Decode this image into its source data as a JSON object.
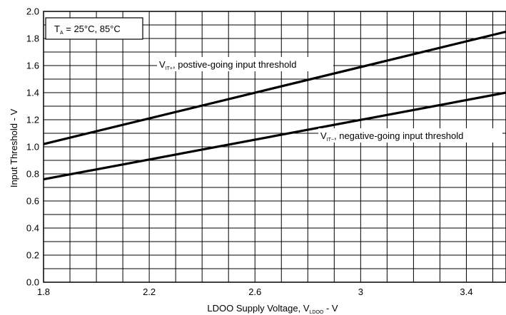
{
  "chart_data": {
    "type": "line",
    "title": "",
    "xlabel_main": "LDOO Supply Voltage, V",
    "xlabel_sub": "LDOO",
    "xlabel_tail": " - V",
    "ylabel": "Input Threshold - V",
    "xlim": [
      1.8,
      3.55
    ],
    "ylim": [
      0.0,
      2.0
    ],
    "x_ticks": [
      1.8,
      2.2,
      2.6,
      3.0,
      3.4
    ],
    "x_tick_labels": [
      "1.8",
      "2.2",
      "2.6",
      "3",
      "3.4"
    ],
    "y_ticks": [
      0.0,
      0.2,
      0.4,
      0.6,
      0.8,
      1.0,
      1.2,
      1.4,
      1.6,
      1.8,
      2.0
    ],
    "y_tick_labels": [
      "0.0",
      "0.2",
      "0.4",
      "0.6",
      "0.8",
      "1.0",
      "1.2",
      "1.4",
      "1.6",
      "1.8",
      "2.0"
    ],
    "grid": true,
    "legend_box": {
      "main": "T",
      "sub": "A",
      "rest": " = 25°C, 85°C"
    },
    "series": [
      {
        "name": "VIT+, postive-going input threshold",
        "label_main": "V",
        "label_sub": "IT+",
        "label_rest": ", postive-going input threshold",
        "x": [
          1.8,
          3.55
        ],
        "y": [
          1.02,
          1.85
        ]
      },
      {
        "name": "VIT−, negative-going input threshold",
        "label_main": "V",
        "label_sub": "IT−",
        "label_rest": ", negative-going input threshold",
        "x": [
          1.8,
          3.55
        ],
        "y": [
          0.76,
          1.4
        ]
      }
    ]
  }
}
